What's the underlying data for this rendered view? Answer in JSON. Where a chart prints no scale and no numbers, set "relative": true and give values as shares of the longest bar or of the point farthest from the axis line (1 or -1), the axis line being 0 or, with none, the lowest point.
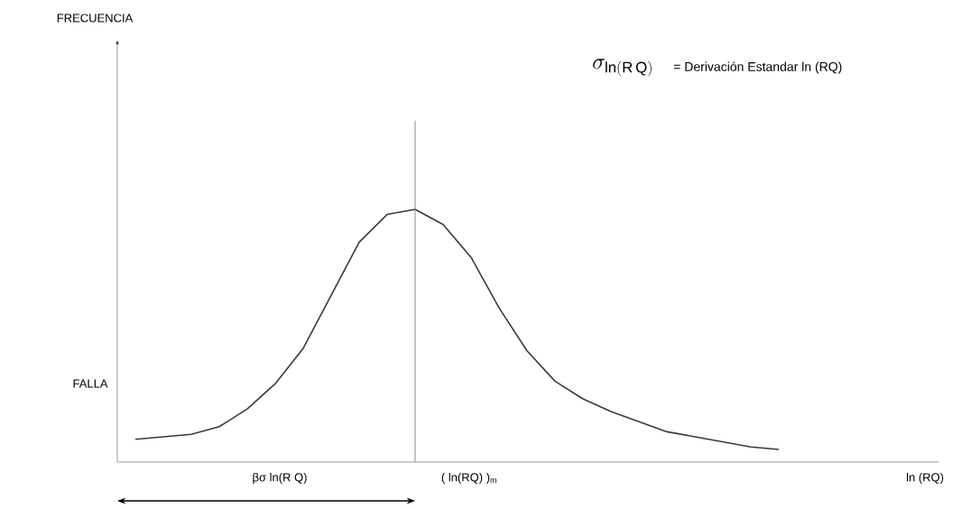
{
  "chart_data": {
    "type": "line",
    "relative": true,
    "categories": [
      null,
      null,
      null,
      null,
      null,
      null,
      null,
      null,
      null,
      null,
      null,
      null,
      null,
      null,
      null,
      null,
      null,
      null,
      null,
      null,
      null,
      null,
      null,
      null
    ],
    "values": [
      0.09,
      0.1,
      0.11,
      0.14,
      0.21,
      0.31,
      0.45,
      0.66,
      0.87,
      0.98,
      1.0,
      0.94,
      0.81,
      0.61,
      0.44,
      0.32,
      0.25,
      0.2,
      0.16,
      0.12,
      0.1,
      0.08,
      0.06,
      0.05
    ],
    "color": "#3a3a3a",
    "annotations": [
      "\\sigma_{\\mathrm{ln(R\\,Q)}}",
      "= Derivación Estandar ln (RQ)",
      "FALLA",
      "βσ ln(R Q)",
      "FRECUENCIA",
      "ln (RQ)",
      "( ln(RQ) )$_{m}$"
    ]
  }
}
